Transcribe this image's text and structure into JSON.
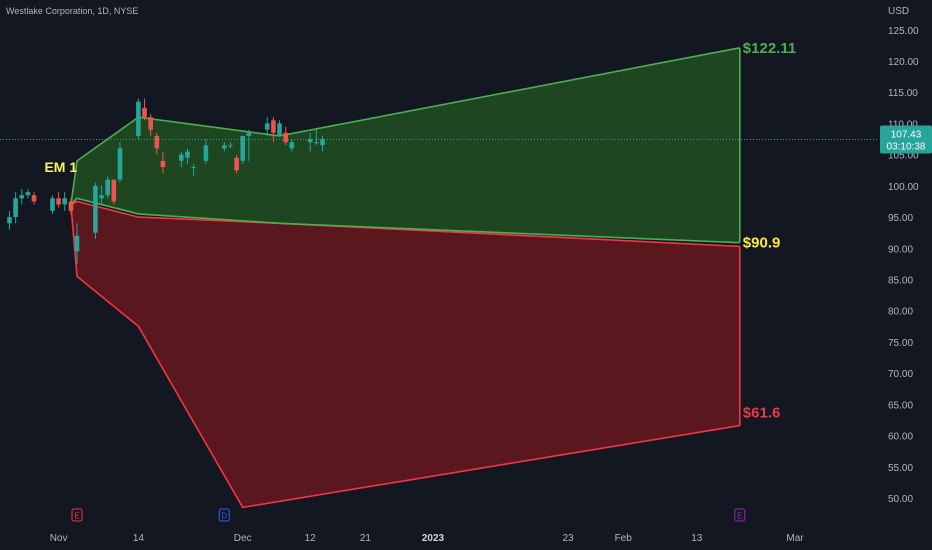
{
  "header": {
    "title": "Westlake Corporation, 1D, NYSE"
  },
  "currency": "USD",
  "colors": {
    "background": "#131722",
    "up_candle": "#26a69a",
    "down_candle": "#ef5350",
    "upper_zone_fill": "#1e4620",
    "upper_zone_stroke": "#4caf50",
    "lower_zone_fill": "#5a171d",
    "lower_zone_stroke": "#f23645",
    "label_green": "#4caf50",
    "label_yellow": "#ffeb3b",
    "label_red": "#f23645",
    "em_label": "#fdf36b",
    "price_tag": "#26a69a"
  },
  "chart_data": {
    "type": "candlestick",
    "title": "Westlake Corporation, 1D, NYSE",
    "ylim": [
      46,
      128
    ],
    "y_ticks": [
      50,
      55,
      60,
      65,
      70,
      75,
      80,
      85,
      90,
      95,
      100,
      105,
      110,
      115,
      120,
      125
    ],
    "y_tick_labels": [
      "50.00",
      "55.00",
      "60.00",
      "65.00",
      "70.00",
      "75.00",
      "80.00",
      "85.00",
      "90.00",
      "95.00",
      "100.00",
      "105.00",
      "110.00",
      "115.00",
      "120.00",
      "125.00"
    ],
    "xlim": [
      "2022-10-24",
      "2023-03-08"
    ],
    "x_ticks": [
      {
        "date": "2022-11-01",
        "label": "Nov"
      },
      {
        "date": "2022-11-14",
        "label": "14"
      },
      {
        "date": "2022-12-01",
        "label": "Dec"
      },
      {
        "date": "2022-12-12",
        "label": "12"
      },
      {
        "date": "2022-12-21",
        "label": "21"
      },
      {
        "date": "2023-01-01",
        "label": "2023",
        "bold": true
      },
      {
        "date": "2023-01-23",
        "label": "23"
      },
      {
        "date": "2023-02-01",
        "label": "Feb"
      },
      {
        "date": "2023-02-13",
        "label": "13"
      },
      {
        "date": "2023-03-01",
        "label": "Mar"
      }
    ],
    "candles": [
      {
        "date": "2022-10-24",
        "o": 94.0,
        "h": 96.0,
        "l": 93.0,
        "c": 95.0
      },
      {
        "date": "2022-10-25",
        "o": 95.0,
        "h": 99.0,
        "l": 94.0,
        "c": 98.0
      },
      {
        "date": "2022-10-26",
        "o": 98.0,
        "h": 99.5,
        "l": 97.0,
        "c": 98.5
      },
      {
        "date": "2022-10-27",
        "o": 98.5,
        "h": 99.5,
        "l": 98.0,
        "c": 99.0
      },
      {
        "date": "2022-10-28",
        "o": 98.5,
        "h": 99.0,
        "l": 97.0,
        "c": 97.5
      },
      {
        "date": "2022-10-31",
        "o": 96.0,
        "h": 98.5,
        "l": 95.5,
        "c": 98.0
      },
      {
        "date": "2022-11-01",
        "o": 98.0,
        "h": 99.0,
        "l": 96.5,
        "c": 97.0
      },
      {
        "date": "2022-11-02",
        "o": 97.0,
        "h": 99.0,
        "l": 96.0,
        "c": 98.0
      },
      {
        "date": "2022-11-03",
        "o": 97.5,
        "h": 98.0,
        "l": 95.5,
        "c": 96.0
      },
      {
        "date": "2022-11-04",
        "o": 89.5,
        "h": 94.0,
        "l": 87.5,
        "c": 92.0
      },
      {
        "date": "2022-11-07",
        "o": 92.5,
        "h": 100.5,
        "l": 91.5,
        "c": 100.0
      },
      {
        "date": "2022-11-08",
        "o": 98.0,
        "h": 100.0,
        "l": 97.0,
        "c": 98.5
      },
      {
        "date": "2022-11-09",
        "o": 98.5,
        "h": 101.5,
        "l": 98.0,
        "c": 101.0
      },
      {
        "date": "2022-11-10",
        "o": 101.0,
        "h": 101.0,
        "l": 97.0,
        "c": 97.5
      },
      {
        "date": "2022-11-11",
        "o": 101.0,
        "h": 107.0,
        "l": 100.5,
        "c": 106.0
      },
      {
        "date": "2022-11-14",
        "o": 108.0,
        "h": 114.0,
        "l": 107.5,
        "c": 113.5
      },
      {
        "date": "2022-11-15",
        "o": 112.5,
        "h": 114.0,
        "l": 110.5,
        "c": 111.0
      },
      {
        "date": "2022-11-16",
        "o": 111.0,
        "h": 111.5,
        "l": 108.0,
        "c": 109.0
      },
      {
        "date": "2022-11-17",
        "o": 108.0,
        "h": 108.5,
        "l": 105.0,
        "c": 106.0
      },
      {
        "date": "2022-11-18",
        "o": 104.0,
        "h": 105.5,
        "l": 102.0,
        "c": 103.0
      },
      {
        "date": "2022-11-21",
        "o": 104.0,
        "h": 105.5,
        "l": 103.0,
        "c": 105.0
      },
      {
        "date": "2022-11-22",
        "o": 104.5,
        "h": 106.0,
        "l": 103.5,
        "c": 105.5
      },
      {
        "date": "2022-11-23",
        "o": 103.0,
        "h": 103.5,
        "l": 101.5,
        "c": 103.0
      },
      {
        "date": "2022-11-25",
        "o": 104.0,
        "h": 107.5,
        "l": 103.5,
        "c": 106.5
      },
      {
        "date": "2022-11-28",
        "o": 106.0,
        "h": 107.0,
        "l": 105.5,
        "c": 106.5
      },
      {
        "date": "2022-11-29",
        "o": 106.5,
        "h": 107.0,
        "l": 106.0,
        "c": 106.5
      },
      {
        "date": "2022-11-30",
        "o": 104.5,
        "h": 105.0,
        "l": 102.0,
        "c": 102.5
      },
      {
        "date": "2022-12-01",
        "o": 104.0,
        "h": 108.0,
        "l": 103.5,
        "c": 108.0
      },
      {
        "date": "2022-12-02",
        "o": 108.0,
        "h": 109.0,
        "l": 104.0,
        "c": 108.5
      },
      {
        "date": "2022-12-05",
        "o": 109.0,
        "h": 111.0,
        "l": 108.0,
        "c": 110.0
      },
      {
        "date": "2022-12-06",
        "o": 110.5,
        "h": 111.0,
        "l": 107.0,
        "c": 108.5
      },
      {
        "date": "2022-12-07",
        "o": 108.0,
        "h": 110.5,
        "l": 108.0,
        "c": 110.0
      },
      {
        "date": "2022-12-08",
        "o": 108.5,
        "h": 109.5,
        "l": 106.5,
        "c": 107.0
      },
      {
        "date": "2022-12-09",
        "o": 106.0,
        "h": 107.5,
        "l": 105.5,
        "c": 107.0
      },
      {
        "date": "2022-12-12",
        "o": 107.0,
        "h": 108.5,
        "l": 105.5,
        "c": 107.5
      },
      {
        "date": "2022-12-13",
        "o": 107.0,
        "h": 109.0,
        "l": 106.5,
        "c": 107.0
      },
      {
        "date": "2022-12-14",
        "o": 106.5,
        "h": 108.0,
        "l": 105.5,
        "c": 107.5
      }
    ],
    "upper_zone": {
      "label": "$122.11",
      "top": [
        [
          "2022-11-03",
          97.0
        ],
        [
          "2022-11-04",
          104.0
        ],
        [
          "2022-11-14",
          111.0
        ],
        [
          "2022-12-07",
          108.0
        ],
        [
          "2023-02-20",
          122.11
        ]
      ],
      "bottom": [
        [
          "2022-11-03",
          97.0
        ],
        [
          "2022-11-04",
          98.0
        ],
        [
          "2022-11-14",
          95.5
        ],
        [
          "2022-12-07",
          94.0
        ],
        [
          "2023-02-20",
          90.9
        ]
      ]
    },
    "lower_zone": {
      "label": "$61.6",
      "top": [
        [
          "2022-11-03",
          97.0
        ],
        [
          "2022-11-04",
          97.5
        ],
        [
          "2022-11-14",
          95.0
        ],
        [
          "2022-12-07",
          94.0
        ],
        [
          "2023-02-20",
          90.3
        ]
      ],
      "bottom": [
        [
          "2022-11-03",
          97.0
        ],
        [
          "2022-11-04",
          85.5
        ],
        [
          "2022-11-14",
          77.5
        ],
        [
          "2022-12-01",
          48.5
        ],
        [
          "2023-02-20",
          61.6
        ]
      ]
    },
    "mid_label": "$90.9",
    "em_label": {
      "text": "EM 1",
      "anchor_date": "2022-10-31",
      "anchor_value": 102.2
    },
    "current_price": {
      "value": 107.43,
      "label": "107.43",
      "countdown": "03:10:38"
    },
    "event_markers": [
      {
        "date": "2022-11-04",
        "letter": "E",
        "color": "#f23645"
      },
      {
        "date": "2022-11-28",
        "letter": "D",
        "color": "#2962ff"
      },
      {
        "date": "2023-02-20",
        "letter": "E",
        "color": "#9c27b0"
      }
    ]
  }
}
